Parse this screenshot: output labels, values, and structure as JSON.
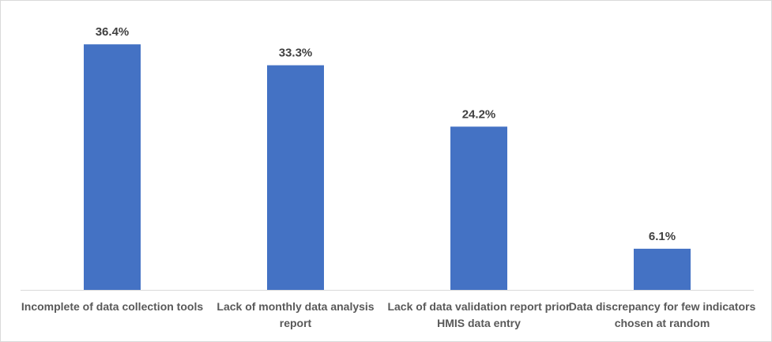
{
  "chart_data": {
    "type": "bar",
    "categories": [
      "Incomplete of data collection tools",
      "Lack of monthly data analysis report",
      "Lack of data validation report prior HMIS data entry",
      "Data discrepancy for few indicators chosen at random"
    ],
    "values": [
      36.4,
      33.3,
      24.2,
      6.1
    ],
    "data_labels": [
      "36.4%",
      "33.3%",
      "24.2%",
      "6.1%"
    ],
    "title": "",
    "xlabel": "",
    "ylabel": "",
    "ylim": [
      0,
      40
    ],
    "grid": false,
    "legend": "none",
    "bar_color": "#4472c4"
  }
}
